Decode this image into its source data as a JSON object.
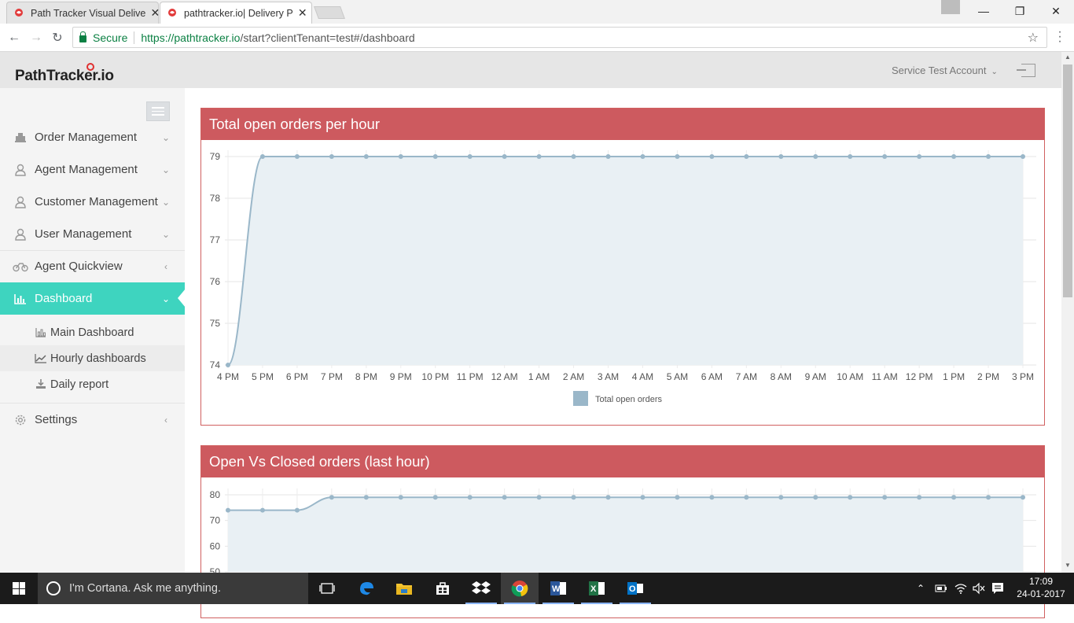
{
  "browser": {
    "tabs": [
      {
        "title": "Path Tracker Visual Delive",
        "active": false
      },
      {
        "title": "pathtracker.io| Delivery P",
        "active": true
      }
    ],
    "secure_label": "Secure",
    "url_scheme_host": "https://pathtracker.io",
    "url_rest": "/start?clientTenant=test#/dashboard"
  },
  "header": {
    "logo": "PathTracker.io",
    "account": "Service Test Account"
  },
  "sidebar": {
    "items": [
      {
        "label": "Order Management",
        "icon": "order-icon"
      },
      {
        "label": "Agent Management",
        "icon": "agent-icon"
      },
      {
        "label": "Customer Management",
        "icon": "customer-icon"
      },
      {
        "label": "User Management",
        "icon": "user-icon"
      },
      {
        "label": "Agent Quickview",
        "icon": "bike-icon"
      },
      {
        "label": "Dashboard",
        "icon": "bar-chart-icon",
        "active": true
      },
      {
        "label": "Settings",
        "icon": "gear-icon"
      }
    ],
    "subitems": [
      {
        "label": "Main Dashboard",
        "icon": "bar-chart-icon"
      },
      {
        "label": "Hourly dashboards",
        "icon": "line-chart-icon",
        "selected": true
      },
      {
        "label": "Daily report",
        "icon": "download-icon"
      }
    ]
  },
  "panels": {
    "open_orders_title": "Total open orders per hour",
    "open_vs_closed_title": "Open Vs Closed orders (last hour)"
  },
  "chart_data": [
    {
      "type": "line",
      "title": "Total open orders per hour",
      "x": [
        "4 PM",
        "5 PM",
        "6 PM",
        "7 PM",
        "8 PM",
        "9 PM",
        "10 PM",
        "11 PM",
        "12 AM",
        "1 AM",
        "2 AM",
        "3 AM",
        "4 AM",
        "5 AM",
        "6 AM",
        "7 AM",
        "8 AM",
        "9 AM",
        "10 AM",
        "11 AM",
        "12 PM",
        "1 PM",
        "2 PM",
        "3 PM"
      ],
      "series": [
        {
          "name": "Total open orders",
          "values": [
            74,
            79,
            79,
            79,
            79,
            79,
            79,
            79,
            79,
            79,
            79,
            79,
            79,
            79,
            79,
            79,
            79,
            79,
            79,
            79,
            79,
            79,
            79,
            79
          ]
        }
      ],
      "yticks": [
        74,
        75,
        76,
        77,
        78,
        79
      ],
      "ylim": [
        74,
        79
      ],
      "legend": "bottom-center",
      "grid": true,
      "color": "#9ab7c9",
      "fill": "#e9f0f4"
    },
    {
      "type": "line",
      "title": "Open Vs Closed orders (last hour)",
      "series": [
        {
          "values": [
            74,
            74,
            74,
            79,
            79,
            79,
            79,
            79,
            79,
            79,
            79,
            79,
            79,
            79,
            79,
            79,
            79,
            79,
            79,
            79,
            79,
            79,
            79,
            79
          ]
        }
      ],
      "yticks": [
        50,
        60,
        70,
        80
      ],
      "ylim": [
        50,
        80
      ],
      "grid": true,
      "color": "#9ab7c9",
      "fill": "#e9f0f4"
    }
  ],
  "taskbar": {
    "search_placeholder": "I'm Cortana. Ask me anything.",
    "time": "17:09",
    "date": "24-01-2017"
  }
}
